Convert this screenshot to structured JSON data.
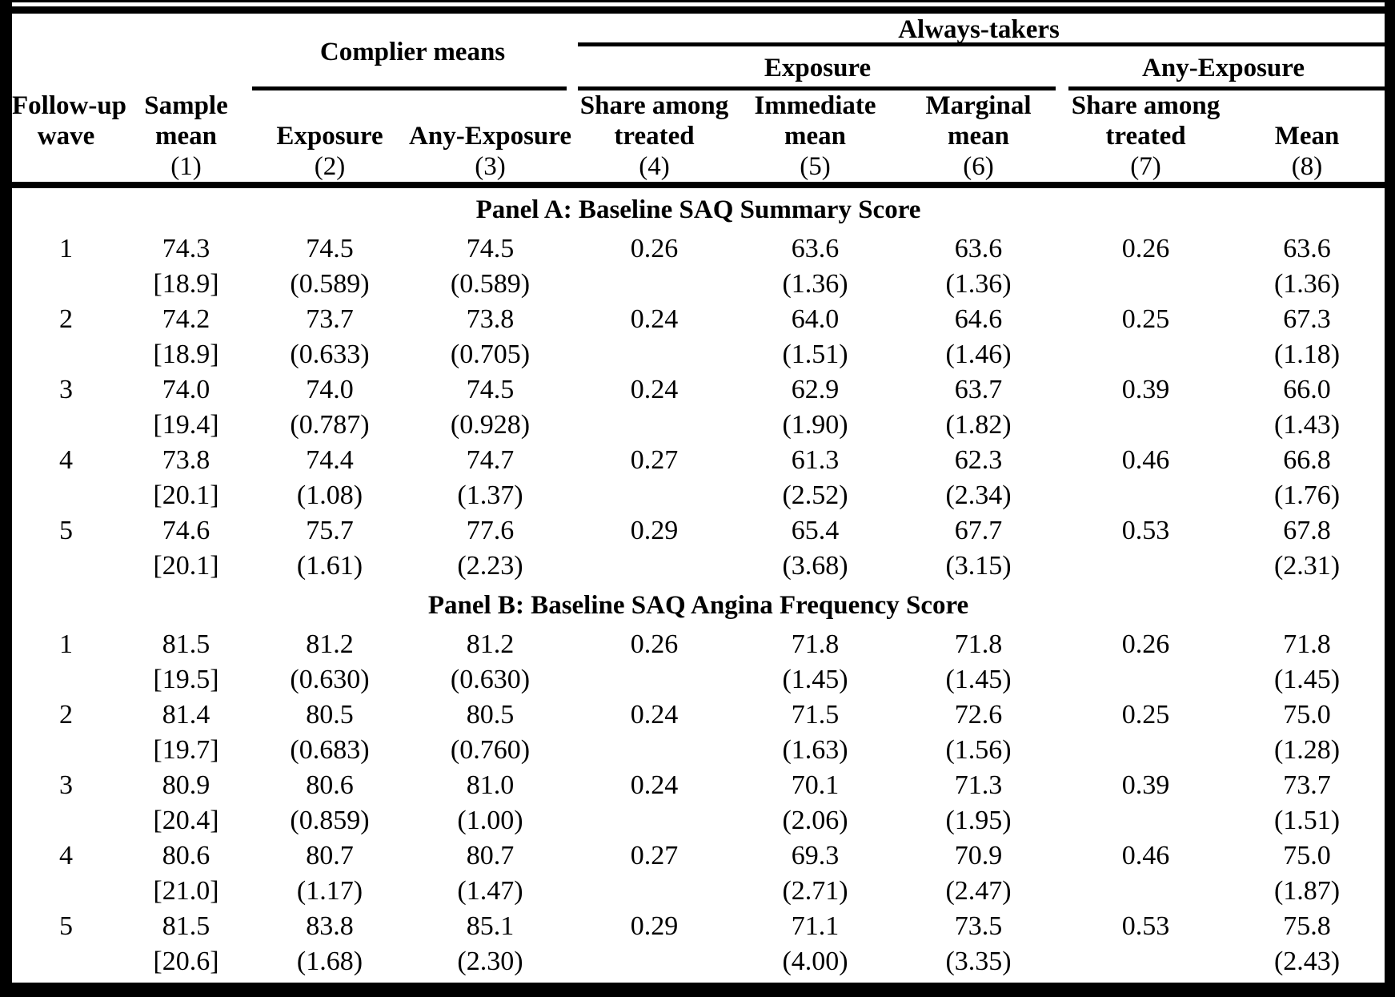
{
  "table": {
    "group_headers": {
      "complier": "Complier means",
      "always_takers": "Always-takers",
      "exposure": "Exposure",
      "any_exposure": "Any-Exposure"
    },
    "columns": [
      {
        "l1": "Follow-up",
        "l2": "wave",
        "l3": ""
      },
      {
        "l1": "Sample",
        "l2": "mean",
        "l3": "(1)"
      },
      {
        "l1": "",
        "l2": "Exposure",
        "l3": "(2)"
      },
      {
        "l1": "",
        "l2": "Any-Exposure",
        "l3": "(3)"
      },
      {
        "l1": "Share among",
        "l2": "treated",
        "l3": "(4)"
      },
      {
        "l1": "Immediate",
        "l2": "mean",
        "l3": "(5)"
      },
      {
        "l1": "Marginal",
        "l2": "mean",
        "l3": "(6)"
      },
      {
        "l1": "Share among",
        "l2": "treated",
        "l3": "(7)"
      },
      {
        "l1": "",
        "l2": "Mean",
        "l3": "(8)"
      }
    ],
    "panels": [
      {
        "title": "Panel A: Baseline SAQ Summary Score",
        "rows": [
          {
            "wave": "1",
            "cells": [
              [
                "74.3",
                "[18.9]"
              ],
              [
                "74.5",
                "(0.589)"
              ],
              [
                "74.5",
                "(0.589)"
              ],
              [
                "0.26",
                ""
              ],
              [
                "63.6",
                "(1.36)"
              ],
              [
                "63.6",
                "(1.36)"
              ],
              [
                "0.26",
                ""
              ],
              [
                "63.6",
                "(1.36)"
              ]
            ]
          },
          {
            "wave": "2",
            "cells": [
              [
                "74.2",
                "[18.9]"
              ],
              [
                "73.7",
                "(0.633)"
              ],
              [
                "73.8",
                "(0.705)"
              ],
              [
                "0.24",
                ""
              ],
              [
                "64.0",
                "(1.51)"
              ],
              [
                "64.6",
                "(1.46)"
              ],
              [
                "0.25",
                ""
              ],
              [
                "67.3",
                "(1.18)"
              ]
            ]
          },
          {
            "wave": "3",
            "cells": [
              [
                "74.0",
                "[19.4]"
              ],
              [
                "74.0",
                "(0.787)"
              ],
              [
                "74.5",
                "(0.928)"
              ],
              [
                "0.24",
                ""
              ],
              [
                "62.9",
                "(1.90)"
              ],
              [
                "63.7",
                "(1.82)"
              ],
              [
                "0.39",
                ""
              ],
              [
                "66.0",
                "(1.43)"
              ]
            ]
          },
          {
            "wave": "4",
            "cells": [
              [
                "73.8",
                "[20.1]"
              ],
              [
                "74.4",
                "(1.08)"
              ],
              [
                "74.7",
                "(1.37)"
              ],
              [
                "0.27",
                ""
              ],
              [
                "61.3",
                "(2.52)"
              ],
              [
                "62.3",
                "(2.34)"
              ],
              [
                "0.46",
                ""
              ],
              [
                "66.8",
                "(1.76)"
              ]
            ]
          },
          {
            "wave": "5",
            "cells": [
              [
                "74.6",
                "[20.1]"
              ],
              [
                "75.7",
                "(1.61)"
              ],
              [
                "77.6",
                "(2.23)"
              ],
              [
                "0.29",
                ""
              ],
              [
                "65.4",
                "(3.68)"
              ],
              [
                "67.7",
                "(3.15)"
              ],
              [
                "0.53",
                ""
              ],
              [
                "67.8",
                "(2.31)"
              ]
            ]
          }
        ]
      },
      {
        "title": "Panel B: Baseline SAQ Angina Frequency Score",
        "rows": [
          {
            "wave": "1",
            "cells": [
              [
                "81.5",
                "[19.5]"
              ],
              [
                "81.2",
                "(0.630)"
              ],
              [
                "81.2",
                "(0.630)"
              ],
              [
                "0.26",
                ""
              ],
              [
                "71.8",
                "(1.45)"
              ],
              [
                "71.8",
                "(1.45)"
              ],
              [
                "0.26",
                ""
              ],
              [
                "71.8",
                "(1.45)"
              ]
            ]
          },
          {
            "wave": "2",
            "cells": [
              [
                "81.4",
                "[19.7]"
              ],
              [
                "80.5",
                "(0.683)"
              ],
              [
                "80.5",
                "(0.760)"
              ],
              [
                "0.24",
                ""
              ],
              [
                "71.5",
                "(1.63)"
              ],
              [
                "72.6",
                "(1.56)"
              ],
              [
                "0.25",
                ""
              ],
              [
                "75.0",
                "(1.28)"
              ]
            ]
          },
          {
            "wave": "3",
            "cells": [
              [
                "80.9",
                "[20.4]"
              ],
              [
                "80.6",
                "(0.859)"
              ],
              [
                "81.0",
                "(1.00)"
              ],
              [
                "0.24",
                ""
              ],
              [
                "70.1",
                "(2.06)"
              ],
              [
                "71.3",
                "(1.95)"
              ],
              [
                "0.39",
                ""
              ],
              [
                "73.7",
                "(1.51)"
              ]
            ]
          },
          {
            "wave": "4",
            "cells": [
              [
                "80.6",
                "[21.0]"
              ],
              [
                "80.7",
                "(1.17)"
              ],
              [
                "80.7",
                "(1.47)"
              ],
              [
                "0.27",
                ""
              ],
              [
                "69.3",
                "(2.71)"
              ],
              [
                "70.9",
                "(2.47)"
              ],
              [
                "0.46",
                ""
              ],
              [
                "75.0",
                "(1.87)"
              ]
            ]
          },
          {
            "wave": "5",
            "cells": [
              [
                "81.5",
                "[20.6]"
              ],
              [
                "83.8",
                "(1.68)"
              ],
              [
                "85.1",
                "(2.30)"
              ],
              [
                "0.29",
                ""
              ],
              [
                "71.1",
                "(4.00)"
              ],
              [
                "73.5",
                "(3.35)"
              ],
              [
                "0.53",
                ""
              ],
              [
                "75.8",
                "(2.43)"
              ]
            ]
          }
        ]
      }
    ]
  }
}
